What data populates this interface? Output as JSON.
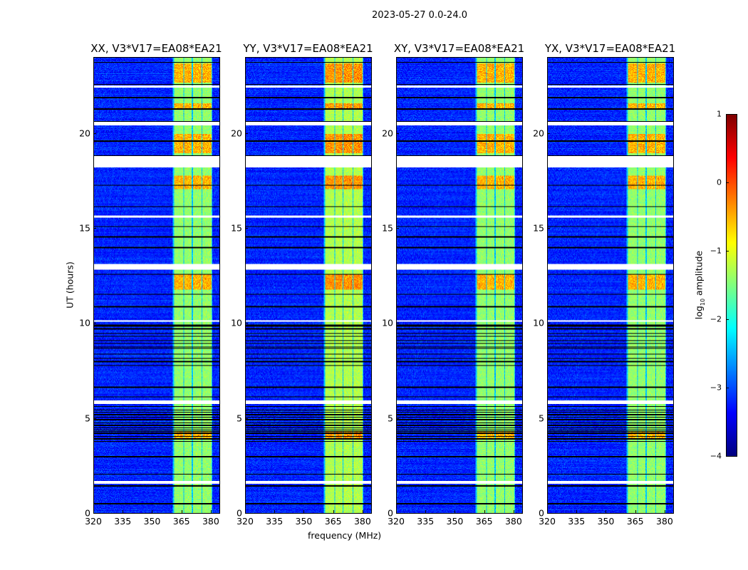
{
  "chart_data": {
    "type": "heatmap",
    "title": "2023-05-27 0.0-24.0",
    "xlabel": "frequency (MHz)",
    "ylabel": "UT (hours)",
    "xlim": [
      320,
      384.4
    ],
    "ylim": [
      0,
      24
    ],
    "xticks": [
      "320",
      "335",
      "350",
      "365",
      "380"
    ],
    "xtick_values": [
      320,
      335,
      350,
      365,
      380
    ],
    "yticks": [
      "0",
      "5",
      "10",
      "15",
      "20"
    ],
    "ytick_values": [
      0,
      5,
      10,
      15,
      20
    ],
    "panels": [
      {
        "title": "XX, V3*V17=EA08*EA21",
        "band_start": 361.1
      },
      {
        "title": "YY, V3*V17=EA08*EA21",
        "band_start": 360.7
      },
      {
        "title": "XY, V3*V17=EA08*EA21",
        "band_start": 361.1
      },
      {
        "title": "YX, V3*V17=EA08*EA21",
        "band_start": 361.1
      }
    ],
    "bright_subbands_mhz": [
      [
        361,
        365.5
      ],
      [
        366,
        370
      ],
      [
        370.5,
        375
      ],
      [
        375.5,
        380
      ]
    ],
    "background_level": -3.2,
    "band_level": -1.4,
    "strong_intervals_ut": [
      [
        11.8,
        12.6
      ],
      [
        19.0,
        20.0
      ],
      [
        21.3,
        21.6
      ],
      [
        22.7,
        23.7
      ],
      [
        17.1,
        17.8
      ],
      [
        3.9,
        4.3
      ]
    ],
    "flagged_intervals_ut": [
      [
        18.25,
        18.85
      ],
      [
        20.45,
        20.65
      ],
      [
        12.85,
        13.15
      ],
      [
        5.75,
        5.95
      ],
      [
        22.45,
        22.55
      ],
      [
        10.1,
        10.2
      ],
      [
        1.55,
        1.7
      ],
      [
        15.6,
        15.7
      ]
    ],
    "colorbar": {
      "label_prefix": "log",
      "label_sub": "10",
      "label_suffix": " amplitude",
      "range": [
        -4,
        1
      ],
      "ticks": [
        "1",
        "0",
        "−1",
        "−2",
        "−3",
        "−4"
      ],
      "tick_values": [
        1,
        0,
        -1,
        -2,
        -3,
        -4
      ],
      "colormap": "jet"
    }
  }
}
